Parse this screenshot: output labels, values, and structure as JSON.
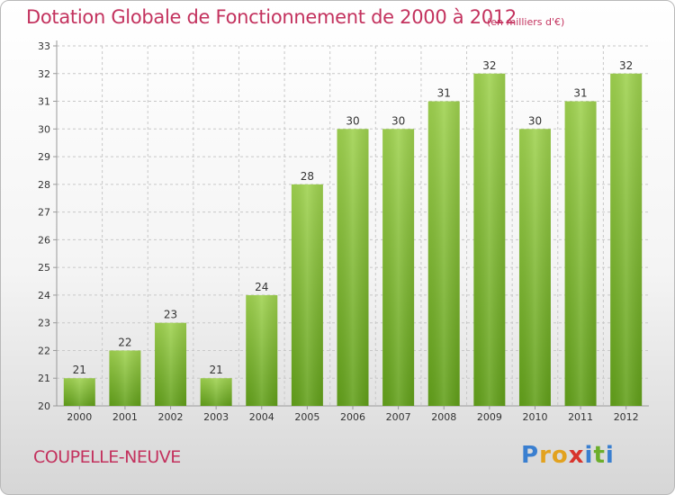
{
  "chart_data": {
    "type": "bar",
    "title": "Dotation Globale de Fonctionnement de 2000 à 2012",
    "unit_label": "(en milliers d'€)",
    "categories": [
      "2000",
      "2001",
      "2002",
      "2003",
      "2004",
      "2005",
      "2006",
      "2007",
      "2008",
      "2009",
      "2010",
      "2011",
      "2012"
    ],
    "values": [
      21,
      22,
      23,
      21,
      24,
      28,
      30,
      30,
      31,
      32,
      30,
      31,
      32
    ],
    "ylim": [
      20,
      33
    ],
    "yticks": [
      20,
      21,
      22,
      23,
      24,
      25,
      26,
      27,
      28,
      29,
      30,
      31,
      32,
      33
    ],
    "grid": true,
    "bar_color": "#7cb82f"
  },
  "commune": "COUPELLE-NEUVE",
  "logo": {
    "letters": [
      "P",
      "r",
      "o",
      "x",
      "i",
      "t",
      "i"
    ],
    "colors": [
      "#3a7fd0",
      "#e2a21f",
      "#e2a21f",
      "#d8342c",
      "#3a7fd0",
      "#6cae2b",
      "#3a7fd0"
    ]
  },
  "colors": {
    "accent": "#c3325e",
    "grid": "#c8c8c8"
  }
}
